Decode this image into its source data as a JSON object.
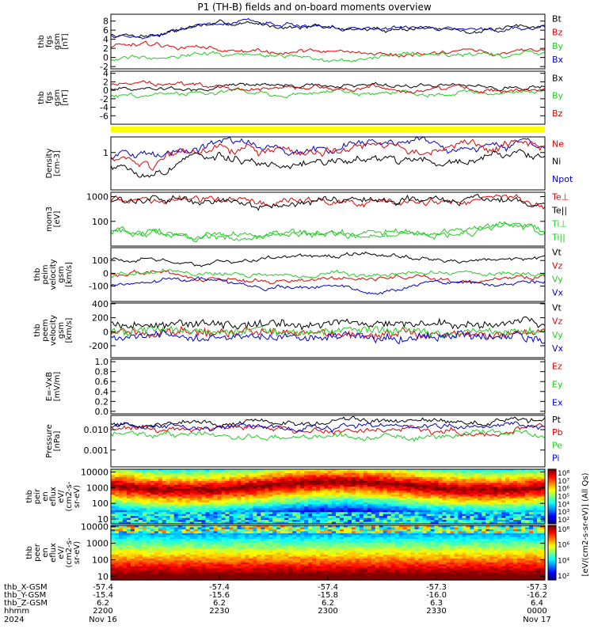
{
  "title": "P1 (TH-B) fields and on-board moments overview",
  "colors": {
    "black": "#000000",
    "red": "#e00000",
    "green": "#22cc22",
    "blue": "#0000cc",
    "yellow": "#ffff00"
  },
  "panels": [
    {
      "id": "fgs_b",
      "ylabel": [
        "thb",
        "fgs",
        "gsm",
        "[nT]"
      ],
      "scale": "linear",
      "ylim": [
        -2.5,
        9.5
      ],
      "ticks": [
        {
          "v": 8,
          "t": "8"
        },
        {
          "v": 6,
          "t": "6"
        },
        {
          "v": 4,
          "t": "4"
        },
        {
          "v": 2,
          "t": "2"
        },
        {
          "v": 0,
          "t": "0"
        },
        {
          "v": -2,
          "t": "-2"
        }
      ],
      "legend": [
        {
          "text": "Bt",
          "color": "black"
        },
        {
          "text": "Bz",
          "color": "red"
        },
        {
          "text": "By",
          "color": "green"
        },
        {
          "text": "Bx",
          "color": "blue"
        }
      ]
    },
    {
      "id": "fgs_dsl",
      "ylabel": [
        "thb",
        "fgs",
        "gsm",
        "[nT]"
      ],
      "scale": "linear",
      "ylim": [
        -8,
        4.5
      ],
      "ticks": [
        {
          "v": 4,
          "t": "4"
        },
        {
          "v": 2,
          "t": "2"
        },
        {
          "v": 0,
          "t": "0"
        },
        {
          "v": -2,
          "t": "-2"
        },
        {
          "v": -4,
          "t": "-4"
        },
        {
          "v": -6,
          "t": "-6"
        }
      ],
      "legend": [
        {
          "text": "Bx",
          "color": "black"
        },
        {
          "text": "By",
          "color": "green"
        },
        {
          "text": "Bz",
          "color": "red"
        }
      ]
    },
    {
      "id": "density",
      "ylabel": [
        "Density",
        "[cm-3]"
      ],
      "scale": "log",
      "ylim": [
        0.05,
        3.5
      ],
      "ticks": [
        {
          "v": 1,
          "t": "1"
        }
      ],
      "legend": [
        {
          "text": "Ne",
          "color": "red"
        },
        {
          "text": "Ni",
          "color": "black"
        },
        {
          "text": "Npot",
          "color": "blue"
        }
      ]
    },
    {
      "id": "temp",
      "ylabel": [
        "mom3",
        "[eV]"
      ],
      "scale": "log",
      "ylim": [
        10,
        1500
      ],
      "ticks": [
        {
          "v": 1000,
          "t": "1000"
        },
        {
          "v": 100,
          "t": "100"
        }
      ],
      "legend": [
        {
          "text": "Te⊥",
          "color": "red"
        },
        {
          "text": "Te||",
          "color": "black"
        },
        {
          "text": "Ti⊥",
          "color": "green"
        },
        {
          "text": "Ti||",
          "color": "green"
        }
      ]
    },
    {
      "id": "peim_v",
      "ylabel": [
        "thb",
        "peim",
        "velocity",
        "gsm",
        "[km/s]"
      ],
      "scale": "linear",
      "ylim": [
        -220,
        200
      ],
      "ticks": [
        {
          "v": 100,
          "t": "100"
        },
        {
          "v": 0,
          "t": "0"
        },
        {
          "v": -100,
          "t": "-100"
        }
      ],
      "legend": [
        {
          "text": "Vt",
          "color": "black"
        },
        {
          "text": "Vz",
          "color": "red"
        },
        {
          "text": "Vy",
          "color": "green"
        },
        {
          "text": "Vx",
          "color": "blue"
        }
      ]
    },
    {
      "id": "peem_v",
      "ylabel": [
        "thb",
        "peem",
        "velocity",
        "gsm",
        "[km/s]"
      ],
      "scale": "linear",
      "ylim": [
        -370,
        410
      ],
      "ticks": [
        {
          "v": 400,
          "t": "400"
        },
        {
          "v": 200,
          "t": "200"
        },
        {
          "v": 0,
          "t": "0"
        },
        {
          "v": -200,
          "t": "-200"
        }
      ],
      "legend": [
        {
          "text": "Vt",
          "color": "black"
        },
        {
          "text": "Vz",
          "color": "red"
        },
        {
          "text": "Vy",
          "color": "green"
        },
        {
          "text": "Vx",
          "color": "blue"
        }
      ]
    },
    {
      "id": "efield",
      "ylabel": [
        "E=-VxB",
        "[mV/m]"
      ],
      "scale": "linear",
      "ylim": [
        -0.05,
        1.05
      ],
      "ticks": [
        {
          "v": 1.0,
          "t": "1.0"
        },
        {
          "v": 0.8,
          "t": "0.8"
        },
        {
          "v": 0.6,
          "t": "0.6"
        },
        {
          "v": 0.4,
          "t": "0.4"
        },
        {
          "v": 0.2,
          "t": "0.2"
        },
        {
          "v": 0.0,
          "t": "0.0"
        }
      ],
      "legend": [
        {
          "text": "Ez",
          "color": "red"
        },
        {
          "text": "Ey",
          "color": "green"
        },
        {
          "text": "Ex",
          "color": "blue"
        }
      ]
    },
    {
      "id": "pressure",
      "ylabel": [
        "Pressure",
        "[nPa]"
      ],
      "scale": "log",
      "ylim": [
        0.00015,
        0.05
      ],
      "ticks": [
        {
          "v": 0.01,
          "t": "0.010"
        },
        {
          "v": 0.001,
          "t": "0.001"
        }
      ],
      "legend": [
        {
          "text": "Pt",
          "color": "black"
        },
        {
          "text": "Pb",
          "color": "red"
        },
        {
          "text": "Pe",
          "color": "green"
        },
        {
          "text": "Pi",
          "color": "blue"
        }
      ]
    },
    {
      "id": "peir",
      "ylabel": [
        "thb",
        "peir",
        "en",
        "eflux",
        "eV/",
        "(cm2-s-",
        "sr-eV)"
      ],
      "scale": "log",
      "ylim": [
        5,
        15000
      ],
      "ticks": [
        {
          "v": 10000,
          "t": "10000"
        },
        {
          "v": 1000,
          "t": "1000"
        },
        {
          "v": 100,
          "t": "100"
        },
        {
          "v": 10,
          "t": "10"
        }
      ]
    },
    {
      "id": "peer",
      "ylabel": [
        "thb",
        "peer",
        "en",
        "eflux",
        "eV/",
        "(cm2-s-",
        "sr-eV)"
      ],
      "scale": "log",
      "ylim": [
        6,
        12000
      ],
      "ticks": [
        {
          "v": 10000,
          "t": "10000"
        },
        {
          "v": 1000,
          "t": "1000"
        },
        {
          "v": 100,
          "t": "100"
        },
        {
          "v": 10,
          "t": "10"
        }
      ]
    }
  ],
  "colorbar": {
    "label": "[eV/(cm2-s-sr-eV)] (All Qs)",
    "ticks": [
      "10⁸",
      "10⁷",
      "10⁶",
      "10⁵",
      "10⁴",
      "10³",
      "10²"
    ],
    "ticks_lower": [
      "10⁸",
      "10⁶",
      "10⁴",
      "10²"
    ]
  },
  "xaxis": {
    "row_labels": [
      "thb_X-GSM",
      "thb_Y-GSM",
      "thb_Z-GSM",
      "hhmm",
      "2024"
    ],
    "columns": [
      {
        "vals": [
          "-57.4",
          "-15.4",
          "6.2",
          "2200",
          "Nov 16"
        ]
      },
      {
        "vals": [
          "-57.4",
          "-15.6",
          "6.2",
          "2230",
          ""
        ]
      },
      {
        "vals": [
          "-57.4",
          "-15.8",
          "6.2",
          "2300",
          ""
        ]
      },
      {
        "vals": [
          "-57.3",
          "-16.0",
          "6.3",
          "2330",
          ""
        ]
      },
      {
        "vals": [
          "-57.3",
          "-16.2",
          "6.4",
          "0000",
          "Nov 17"
        ]
      }
    ]
  },
  "chart_data": {
    "type": "line",
    "title": "P1 (TH-B) fields and on-board moments overview",
    "time_range": [
      "2024-11-16 22:00",
      "2024-11-17 00:00"
    ],
    "x_ticks": [
      "2200",
      "2230",
      "2300",
      "2330",
      "0000"
    ],
    "series": [
      {
        "panel": "fgs_b",
        "name": "Bt",
        "color": "black",
        "base": [
          5.0,
          5.0,
          7.0,
          7.5,
          7.0,
          6.5,
          6.0,
          6.5,
          6.0,
          6.0,
          7.0
        ]
      },
      {
        "panel": "fgs_b",
        "name": "Bz",
        "color": "red",
        "base": [
          2.5,
          2.5,
          2.0,
          1.5,
          1.0,
          1.5,
          1.0,
          0.5,
          1.0,
          0.5,
          2.0
        ]
      },
      {
        "panel": "fgs_b",
        "name": "By",
        "color": "green",
        "base": [
          -0.5,
          0.5,
          1.0,
          0.5,
          0.5,
          0.0,
          0.0,
          0.5,
          0.5,
          0.0,
          1.0
        ]
      },
      {
        "panel": "fgs_b",
        "name": "Bx",
        "color": "blue",
        "base": [
          5.0,
          4.5,
          7.0,
          7.5,
          7.0,
          6.5,
          6.0,
          6.5,
          6.0,
          6.0,
          7.0
        ]
      },
      {
        "panel": "fgs_dsl",
        "name": "Bx",
        "color": "black",
        "base": [
          0.5,
          0.5,
          0.0,
          1.5,
          1.5,
          1.0,
          1.5,
          1.0,
          1.5,
          0.5,
          1.0
        ]
      },
      {
        "panel": "fgs_dsl",
        "name": "By",
        "color": "green",
        "base": [
          -1.5,
          -1.0,
          -0.5,
          -0.5,
          -1.0,
          -0.5,
          -1.0,
          -0.5,
          -0.5,
          -1.0,
          -0.5
        ]
      },
      {
        "panel": "fgs_dsl",
        "name": "Bz",
        "color": "red",
        "base": [
          1.5,
          1.5,
          1.0,
          0.5,
          0.5,
          0.5,
          0.5,
          0.0,
          0.5,
          0.0,
          0.5
        ]
      },
      {
        "panel": "density",
        "name": "Npot",
        "color": "blue",
        "base": [
          0.7,
          0.8,
          1.9,
          1.7,
          1.5,
          1.4,
          2.0,
          1.4,
          1.6,
          1.9,
          1.5
        ]
      },
      {
        "panel": "density",
        "name": "Ne",
        "color": "red",
        "base": [
          0.7,
          0.4,
          1.5,
          1.2,
          0.9,
          1.0,
          1.6,
          1.0,
          1.1,
          1.6,
          1.3
        ]
      },
      {
        "panel": "density",
        "name": "Ni",
        "color": "black",
        "base": [
          0.35,
          0.15,
          0.5,
          0.5,
          0.4,
          0.45,
          0.6,
          0.5,
          0.55,
          0.7,
          0.6
        ]
      },
      {
        "panel": "temp",
        "name": "Te⊥",
        "color": "red",
        "base": [
          700,
          850,
          650,
          600,
          600,
          650,
          600,
          650,
          700,
          800,
          500
        ]
      },
      {
        "panel": "temp",
        "name": "Te||",
        "color": "black",
        "base": [
          650,
          800,
          600,
          550,
          550,
          600,
          550,
          600,
          650,
          750,
          450
        ]
      },
      {
        "panel": "temp",
        "name": "Ti⊥",
        "color": "green",
        "base": [
          40,
          35,
          25,
          25,
          30,
          30,
          30,
          35,
          40,
          70,
          40
        ]
      },
      {
        "panel": "temp",
        "name": "Ti||",
        "color": "green",
        "base": [
          35,
          30,
          22,
          22,
          28,
          28,
          28,
          30,
          35,
          60,
          35
        ]
      },
      {
        "panel": "peim_v",
        "name": "Vt",
        "color": "black",
        "base": [
          120,
          90,
          60,
          100,
          120,
          120,
          150,
          110,
          90,
          130,
          120
        ]
      },
      {
        "panel": "peim_v",
        "name": "Vz",
        "color": "red",
        "base": [
          0,
          20,
          -40,
          -60,
          -60,
          -50,
          -40,
          -40,
          -50,
          -40,
          -20
        ]
      },
      {
        "panel": "peim_v",
        "name": "Vy",
        "color": "green",
        "base": [
          -20,
          20,
          10,
          0,
          -20,
          0,
          -10,
          10,
          0,
          -10,
          0
        ]
      },
      {
        "panel": "peim_v",
        "name": "Vx",
        "color": "blue",
        "base": [
          -100,
          -60,
          -40,
          -90,
          -110,
          -100,
          -150,
          -100,
          -80,
          -90,
          -60
        ]
      },
      {
        "panel": "peem_v",
        "name": "Vt",
        "color": "black",
        "base": [
          100,
          90,
          100,
          100,
          110,
          110,
          120,
          110,
          100,
          120,
          110
        ]
      },
      {
        "panel": "peem_v",
        "name": "Vz",
        "color": "red",
        "base": [
          0,
          -20,
          -20,
          -10,
          -20,
          -20,
          -30,
          -20,
          -20,
          -30,
          -20
        ]
      },
      {
        "panel": "peem_v",
        "name": "Vy",
        "color": "green",
        "base": [
          0,
          10,
          0,
          10,
          0,
          0,
          10,
          0,
          0,
          10,
          0
        ]
      },
      {
        "panel": "peem_v",
        "name": "Vx",
        "color": "blue",
        "base": [
          -60,
          -60,
          -70,
          -70,
          -80,
          -80,
          -90,
          -80,
          -70,
          -80,
          -70
        ]
      },
      {
        "panel": "pressure",
        "name": "Pt",
        "color": "black",
        "base": [
          0.02,
          0.02,
          0.025,
          0.025,
          0.025,
          0.025,
          0.025,
          0.025,
          0.025,
          0.03,
          0.03
        ]
      },
      {
        "panel": "pressure",
        "name": "Pb",
        "color": "red",
        "base": [
          0.012,
          0.011,
          0.012,
          0.013,
          0.011,
          0.01,
          0.009,
          0.009,
          0.01,
          0.006,
          0.012
        ]
      },
      {
        "panel": "pressure",
        "name": "Pe",
        "color": "green",
        "base": [
          0.006,
          0.005,
          0.006,
          0.005,
          0.005,
          0.005,
          0.006,
          0.005,
          0.005,
          0.006,
          0.005
        ]
      },
      {
        "panel": "pressure",
        "name": "Pi",
        "color": "blue",
        "base": [
          0.015,
          0.014,
          0.012,
          0.012,
          0.012,
          0.012,
          0.013,
          0.012,
          0.012,
          0.018,
          0.015
        ]
      }
    ]
  }
}
